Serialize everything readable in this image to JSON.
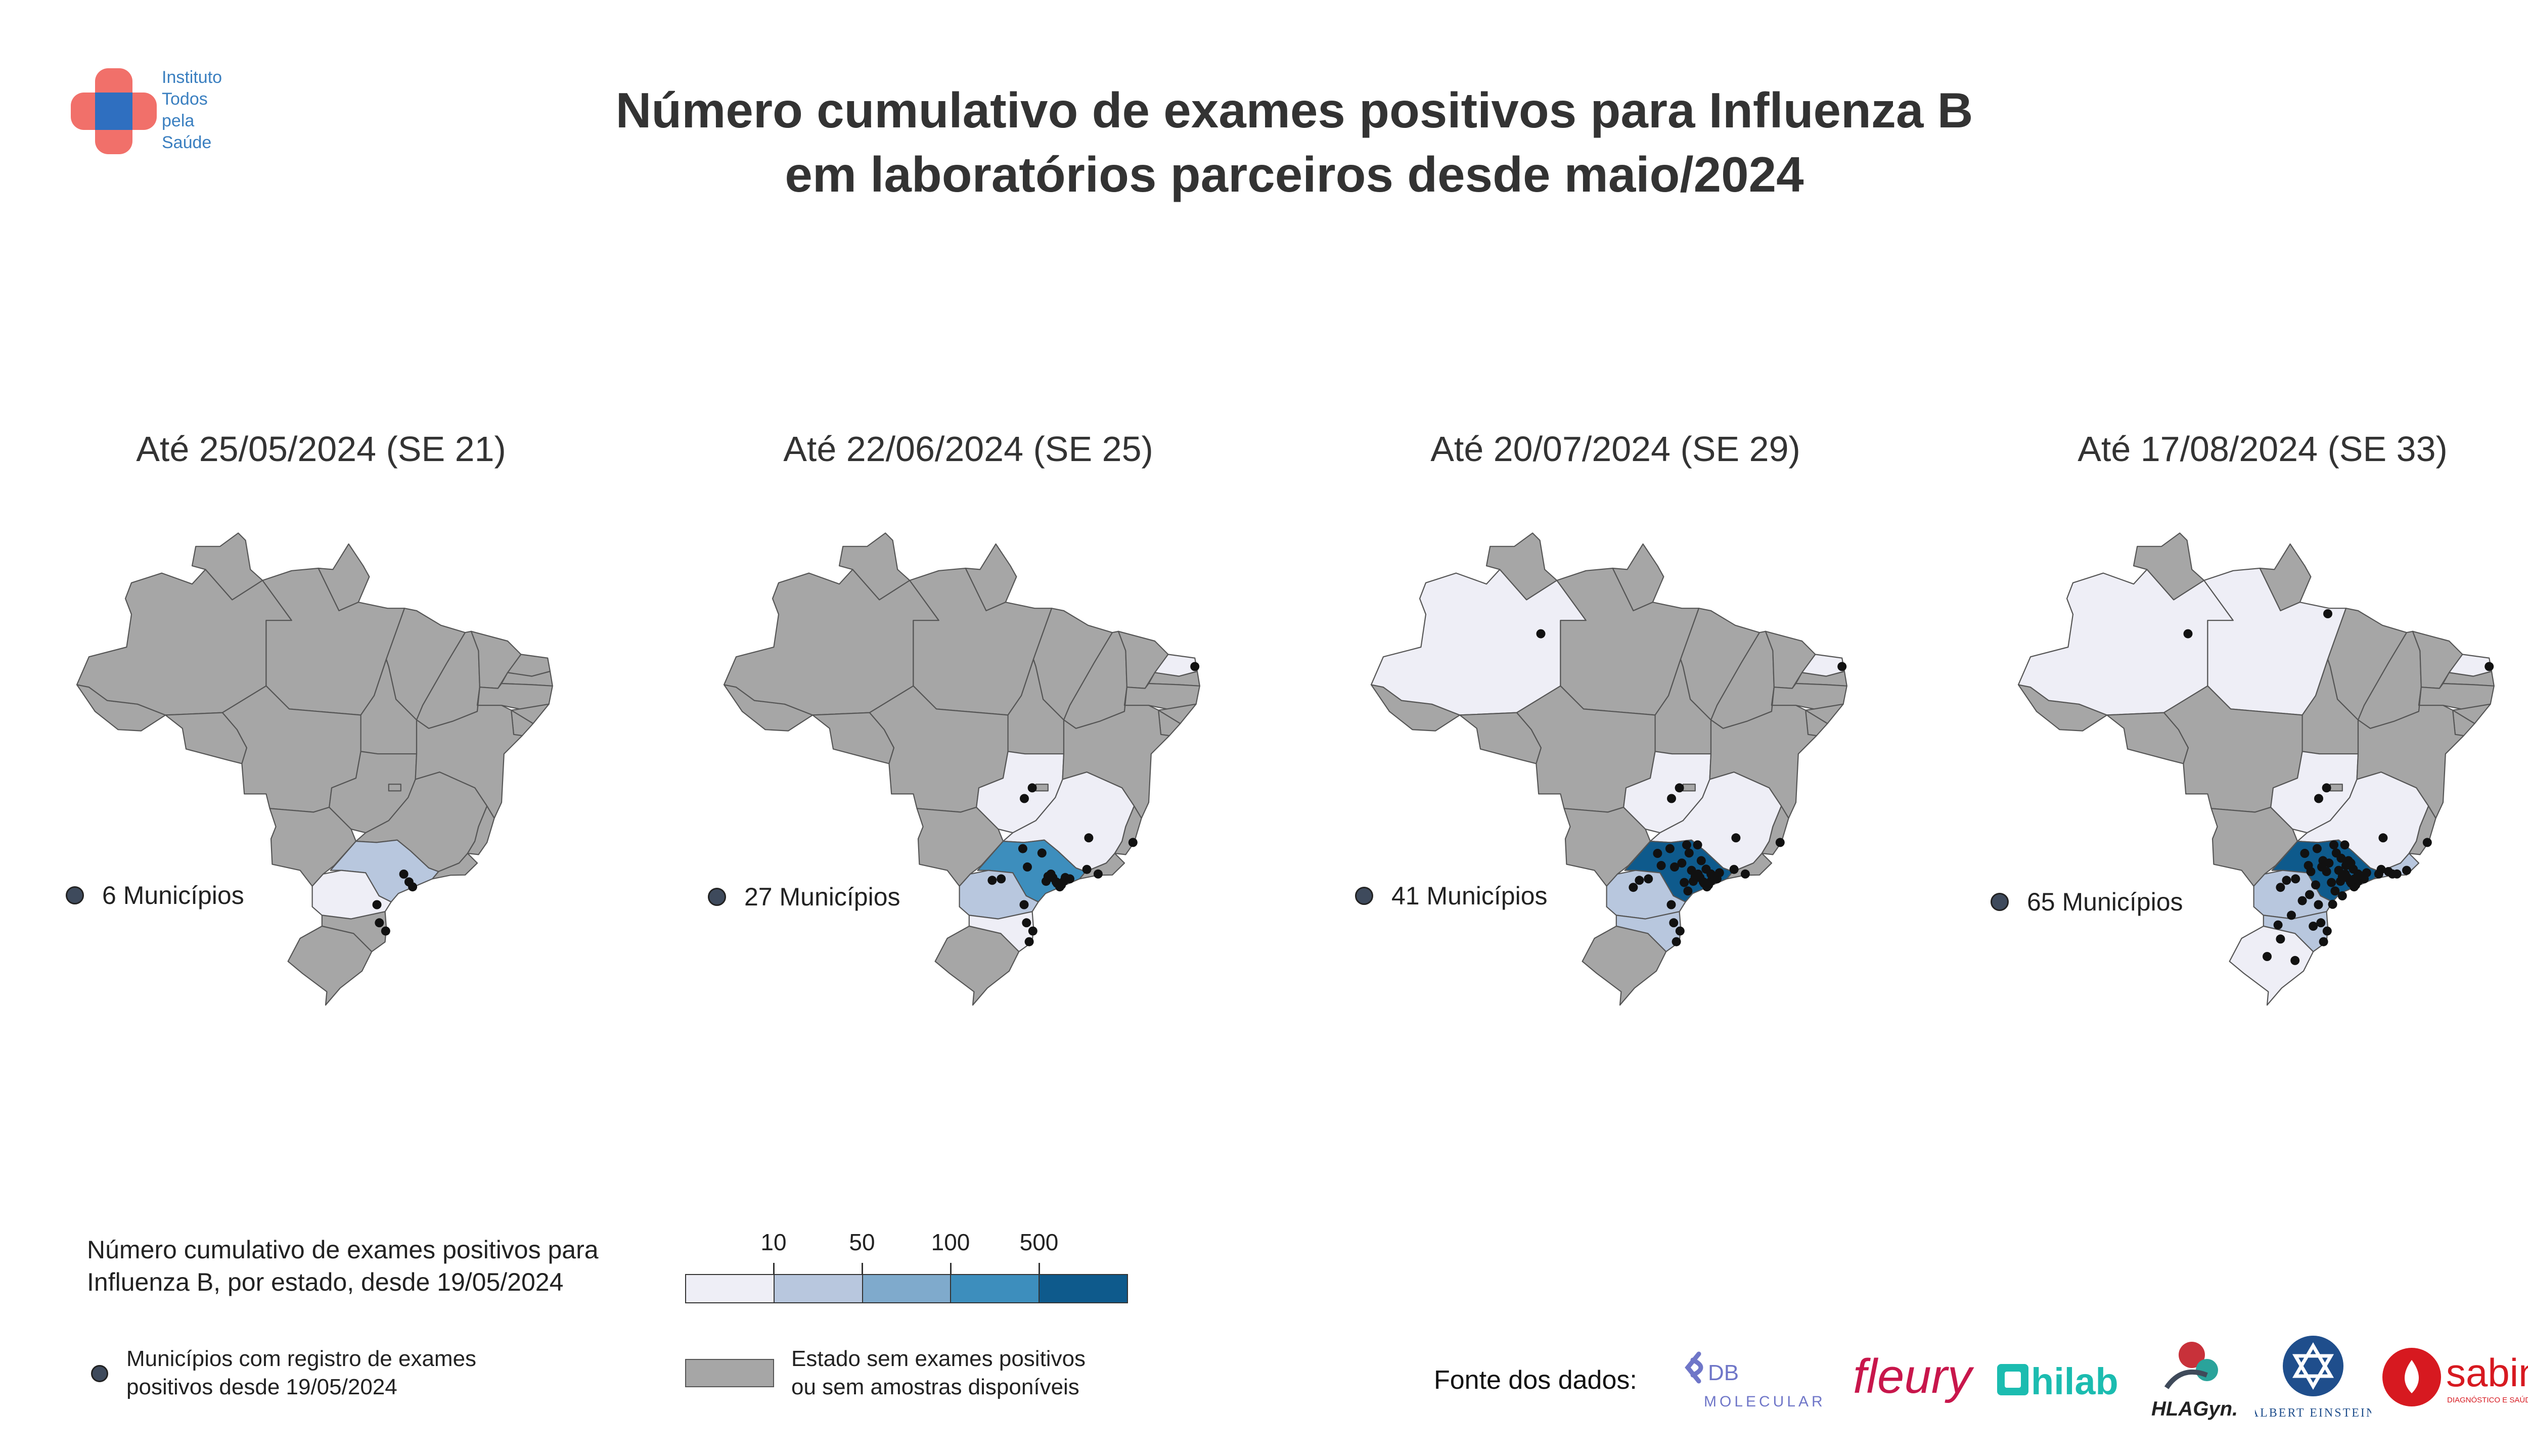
{
  "brand": {
    "lines": [
      "Instituto",
      "Todos",
      "pela",
      "Saúde"
    ],
    "colors": {
      "red": "#f0605a",
      "blue": "#2f6fc0"
    }
  },
  "title": {
    "line1": "Número cumulativo de exames positivos para Influenza B",
    "line2": "em laboratórios parceiros desde maio/2024"
  },
  "panels": [
    {
      "label": "Até 25/05/2024 (SE 21)",
      "count_label": "6 Municípios",
      "states": {
        "SP": "10-50",
        "PR": "<10"
      },
      "points": [
        [
          -46.63,
          -23.55
        ],
        [
          -47.06,
          -22.91
        ],
        [
          -46.33,
          -23.96
        ],
        [
          -49.27,
          -25.43
        ],
        [
          -49.07,
          -26.92
        ],
        [
          -48.55,
          -27.6
        ]
      ]
    },
    {
      "label": "Até 22/06/2024 (SE 25)",
      "count_label": "27 Municípios",
      "states": {
        "SP": "100-500",
        "PR": "10-50",
        "MG": "<10",
        "GO": "<10",
        "RN": "<10",
        "SC": "<10"
      },
      "points": [
        [
          -46.63,
          -23.55
        ],
        [
          -47.06,
          -22.91
        ],
        [
          -46.33,
          -23.96
        ],
        [
          -49.27,
          -25.43
        ],
        [
          -49.07,
          -26.92
        ],
        [
          -48.55,
          -27.6
        ],
        [
          -49.25,
          -16.68
        ],
        [
          -48.6,
          -15.8
        ],
        [
          -43.94,
          -19.92
        ],
        [
          -43.17,
          -22.9
        ],
        [
          -35.2,
          -5.8
        ],
        [
          -46.55,
          -23.67
        ],
        [
          -45.88,
          -23.19
        ],
        [
          -47.46,
          -23.5
        ],
        [
          -47.8,
          -21.17
        ],
        [
          -49.38,
          -20.81
        ],
        [
          -49.0,
          -22.32
        ],
        [
          -46.0,
          -23.5
        ],
        [
          -46.9,
          -23.2
        ],
        [
          -45.5,
          -23.3
        ],
        [
          -46.2,
          -23.8
        ],
        [
          -47.3,
          -23.1
        ],
        [
          -51.16,
          -23.3
        ],
        [
          -51.9,
          -23.42
        ],
        [
          -48.85,
          -28.48
        ],
        [
          -44.1,
          -22.52
        ],
        [
          -40.3,
          -20.3
        ]
      ]
    },
    {
      "label": "Até 20/07/2024 (SE 29)",
      "count_label": "41 Municípios",
      "states": {
        "SP": "≥500",
        "PR": "10-50",
        "SC": "10-50",
        "MG": "<10",
        "GO": "<10",
        "AM": "<10",
        "RN": "<10"
      },
      "points": [
        [
          -46.63,
          -23.55
        ],
        [
          -47.06,
          -22.91
        ],
        [
          -46.33,
          -23.96
        ],
        [
          -49.27,
          -25.43
        ],
        [
          -49.07,
          -26.92
        ],
        [
          -48.55,
          -27.6
        ],
        [
          -49.25,
          -16.68
        ],
        [
          -48.6,
          -15.8
        ],
        [
          -43.94,
          -19.92
        ],
        [
          -43.17,
          -22.9
        ],
        [
          -35.2,
          -5.8
        ],
        [
          -46.55,
          -23.67
        ],
        [
          -45.88,
          -23.19
        ],
        [
          -47.46,
          -23.5
        ],
        [
          -47.8,
          -21.17
        ],
        [
          -49.38,
          -20.81
        ],
        [
          -49.0,
          -22.32
        ],
        [
          -46.0,
          -23.5
        ],
        [
          -46.9,
          -23.2
        ],
        [
          -45.5,
          -23.3
        ],
        [
          -46.2,
          -23.8
        ],
        [
          -47.3,
          -23.1
        ],
        [
          -51.16,
          -23.3
        ],
        [
          -51.9,
          -23.42
        ],
        [
          -48.85,
          -28.48
        ],
        [
          -44.1,
          -22.52
        ],
        [
          -40.3,
          -20.3
        ],
        [
          -60.02,
          -3.1
        ],
        [
          -48.0,
          -20.5
        ],
        [
          -50.4,
          -21.2
        ],
        [
          -47.6,
          -22.6
        ],
        [
          -46.8,
          -21.8
        ],
        [
          -48.2,
          -23.6
        ],
        [
          -45.3,
          -22.8
        ],
        [
          -47.9,
          -24.3
        ],
        [
          -46.4,
          -22.5
        ],
        [
          -48.4,
          -22.0
        ],
        [
          -47.1,
          -20.5
        ],
        [
          -46.0,
          -22.9
        ],
        [
          -50.1,
          -22.2
        ],
        [
          -52.4,
          -24.0
        ]
      ]
    },
    {
      "label": "Até 17/08/2024 (SE 33)",
      "count_label": "65 Municípios",
      "states": {
        "SP": "≥500",
        "PR": "10-50",
        "SC": "10-50",
        "MG": "<10",
        "GO": "<10",
        "AM": "<10",
        "RN": "<10",
        "RS": "<10",
        "PA": "<10",
        "RJ": "10-50"
      },
      "points": [
        [
          -46.63,
          -23.55
        ],
        [
          -47.06,
          -22.91
        ],
        [
          -46.33,
          -23.96
        ],
        [
          -49.27,
          -25.43
        ],
        [
          -49.07,
          -26.92
        ],
        [
          -48.55,
          -27.6
        ],
        [
          -49.25,
          -16.68
        ],
        [
          -48.6,
          -15.8
        ],
        [
          -43.94,
          -19.92
        ],
        [
          -43.17,
          -22.9
        ],
        [
          -35.2,
          -5.8
        ],
        [
          -46.55,
          -23.67
        ],
        [
          -45.88,
          -23.19
        ],
        [
          -47.46,
          -23.5
        ],
        [
          -47.8,
          -21.17
        ],
        [
          -49.38,
          -20.81
        ],
        [
          -49.0,
          -22.32
        ],
        [
          -46.0,
          -23.5
        ],
        [
          -46.9,
          -23.2
        ],
        [
          -45.5,
          -23.3
        ],
        [
          -46.2,
          -23.8
        ],
        [
          -47.3,
          -23.1
        ],
        [
          -51.16,
          -23.3
        ],
        [
          -51.9,
          -23.42
        ],
        [
          -48.85,
          -28.48
        ],
        [
          -44.1,
          -22.52
        ],
        [
          -40.3,
          -20.3
        ],
        [
          -60.02,
          -3.1
        ],
        [
          -48.0,
          -20.5
        ],
        [
          -50.4,
          -21.2
        ],
        [
          -47.6,
          -22.6
        ],
        [
          -46.8,
          -21.8
        ],
        [
          -48.2,
          -23.6
        ],
        [
          -45.3,
          -22.8
        ],
        [
          -47.9,
          -24.3
        ],
        [
          -46.4,
          -22.5
        ],
        [
          -48.4,
          -22.0
        ],
        [
          -47.1,
          -20.5
        ],
        [
          -46.0,
          -22.9
        ],
        [
          -50.1,
          -22.2
        ],
        [
          -52.4,
          -24.0
        ],
        [
          -48.5,
          -1.45
        ],
        [
          -51.2,
          -30.03
        ],
        [
          -52.4,
          -28.26
        ],
        [
          -53.5,
          -29.7
        ],
        [
          -42.8,
          -22.9
        ],
        [
          -42.0,
          -22.6
        ],
        [
          -44.3,
          -22.9
        ],
        [
          -43.5,
          -22.7
        ],
        [
          -46.3,
          -23.3
        ],
        [
          -47.0,
          -22.2
        ],
        [
          -48.9,
          -21.8
        ],
        [
          -49.9,
          -22.7
        ],
        [
          -45.9,
          -23.0
        ],
        [
          -46.6,
          -22.0
        ],
        [
          -47.4,
          -21.6
        ],
        [
          -48.6,
          -22.7
        ],
        [
          -49.5,
          -23.8
        ],
        [
          -50.6,
          -25.1
        ],
        [
          -51.5,
          -26.3
        ],
        [
          -52.6,
          -27.1
        ],
        [
          -49.7,
          -27.2
        ],
        [
          -50.0,
          -24.6
        ],
        [
          -48.1,
          -25.4
        ],
        [
          -47.3,
          -24.7
        ]
      ]
    }
  ],
  "legend": {
    "title_line1": "Número cumulativo de exames positivos para",
    "title_line2": "Influenza B, por estado, desde 19/05/2024",
    "ticks": [
      "10",
      "50",
      "100",
      "500"
    ],
    "bins": [
      "<10",
      "10-50",
      "50-100",
      "100-500",
      "≥500"
    ],
    "colors": [
      "#eeeef6",
      "#b8c7de",
      "#7faacc",
      "#3d8ebd",
      "#0e5a8c"
    ],
    "no_data_color": "#a6a6a6",
    "municipios_line1": "Municípios com registro de exames",
    "municipios_line2": "positivos desde 19/05/2024",
    "grey_line1": "Estado sem exames positivos",
    "grey_line2": "ou sem amostras disponíveis"
  },
  "sources": {
    "label": "Fonte dos dados:",
    "db": "DB",
    "db_sub": "MOLECULAR",
    "fleury": "fleury",
    "hilab": "hilab",
    "hlagyn": "HLAGyn.",
    "einstein_sub": "ALBERT EINSTEIN",
    "sabin": "sabin",
    "sabin_sub": "DIAGNÓSTICO E SAÚDE"
  }
}
